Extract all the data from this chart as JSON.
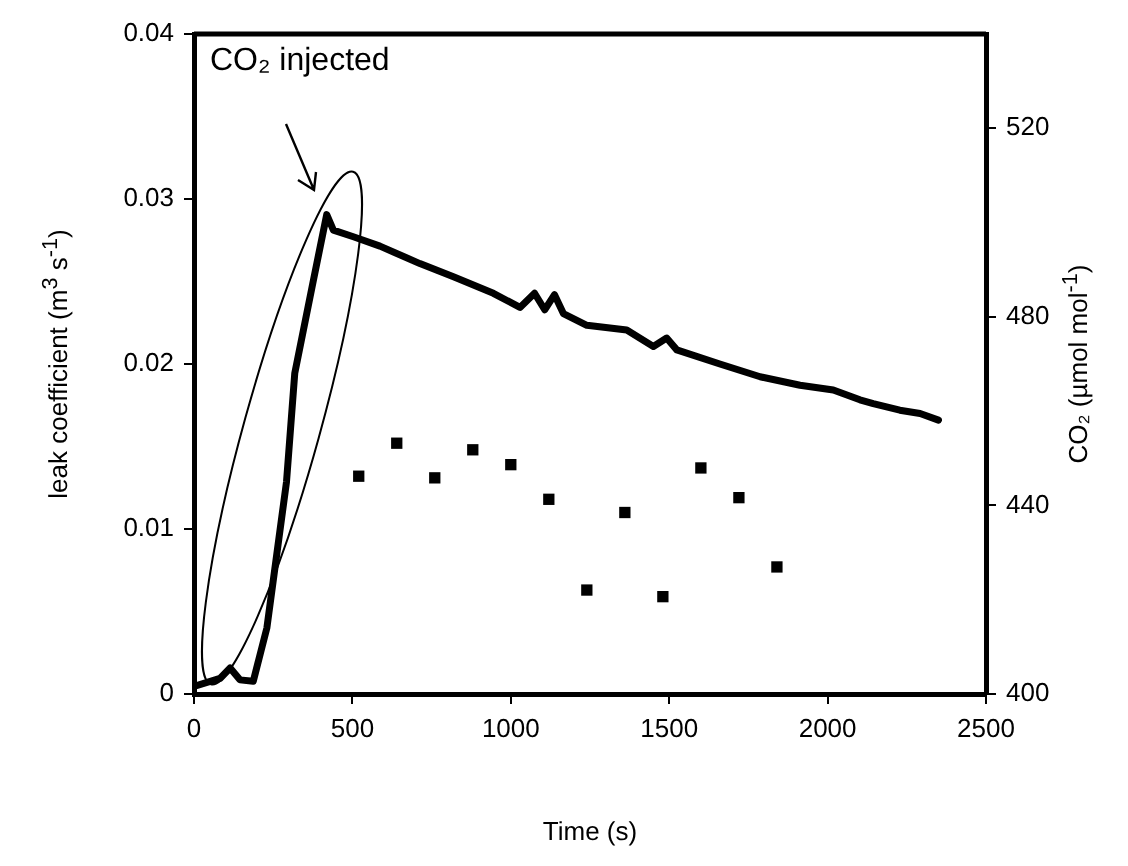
{
  "chart_data": {
    "type": "line",
    "xlabel": "Time (s)",
    "ylabel": "leak coefficient (m$^{3}$ s$^{-1}$)",
    "y2label": "CO₂ (µmol mol$^{-1}$)",
    "annotations": [
      "CO₂ injected"
    ],
    "xlim": [
      0,
      2500
    ],
    "xticks": [
      0,
      500,
      1000,
      1500,
      2000,
      2500
    ],
    "ylim": [
      0,
      0.04
    ],
    "yticks": [
      0,
      0.01,
      0.02,
      0.03,
      0.04
    ],
    "y2lim": [
      400,
      540
    ],
    "y2ticks": [
      400,
      440,
      480,
      520
    ],
    "legend": false,
    "grid": false,
    "series": [
      {
        "type": "scatter",
        "marker": "square",
        "color": "#000000",
        "x": [
          520,
          640,
          760,
          880,
          1000,
          1120,
          1240,
          1360,
          1480,
          1600,
          1720,
          1840
        ],
        "values": [
          0.0132,
          0.0152,
          0.0131,
          0.0148,
          0.0139,
          0.0118,
          0.0063,
          0.011,
          0.0059,
          0.0137,
          0.0119,
          0.0077
        ]
      },
      {
        "axis": "y2",
        "marker": "none",
        "color": "#000000",
        "x": [
          0,
          82,
          114,
          145,
          187,
          230,
          292,
          318,
          377,
          419,
          440,
          503,
          587,
          713,
          819,
          945,
          1029,
          1075,
          1107,
          1138,
          1166,
          1240,
          1366,
          1450,
          1492,
          1524,
          1660,
          1787,
          1913,
          2018,
          2102,
          2144,
          2228,
          2292,
          2350
        ],
        "values": [
          401.6,
          403.3,
          405.5,
          403,
          402.7,
          414,
          445,
          468,
          487.8,
          501.7,
          498.4,
          497,
          495,
          491.3,
          488.5,
          485,
          482,
          485,
          481.5,
          484.7,
          480.7,
          478.2,
          477.2,
          473.7,
          475.5,
          473,
          470,
          467.3,
          465.5,
          464.5,
          462.4,
          461.6,
          460.2,
          459.5,
          458.1
        ]
      }
    ]
  }
}
